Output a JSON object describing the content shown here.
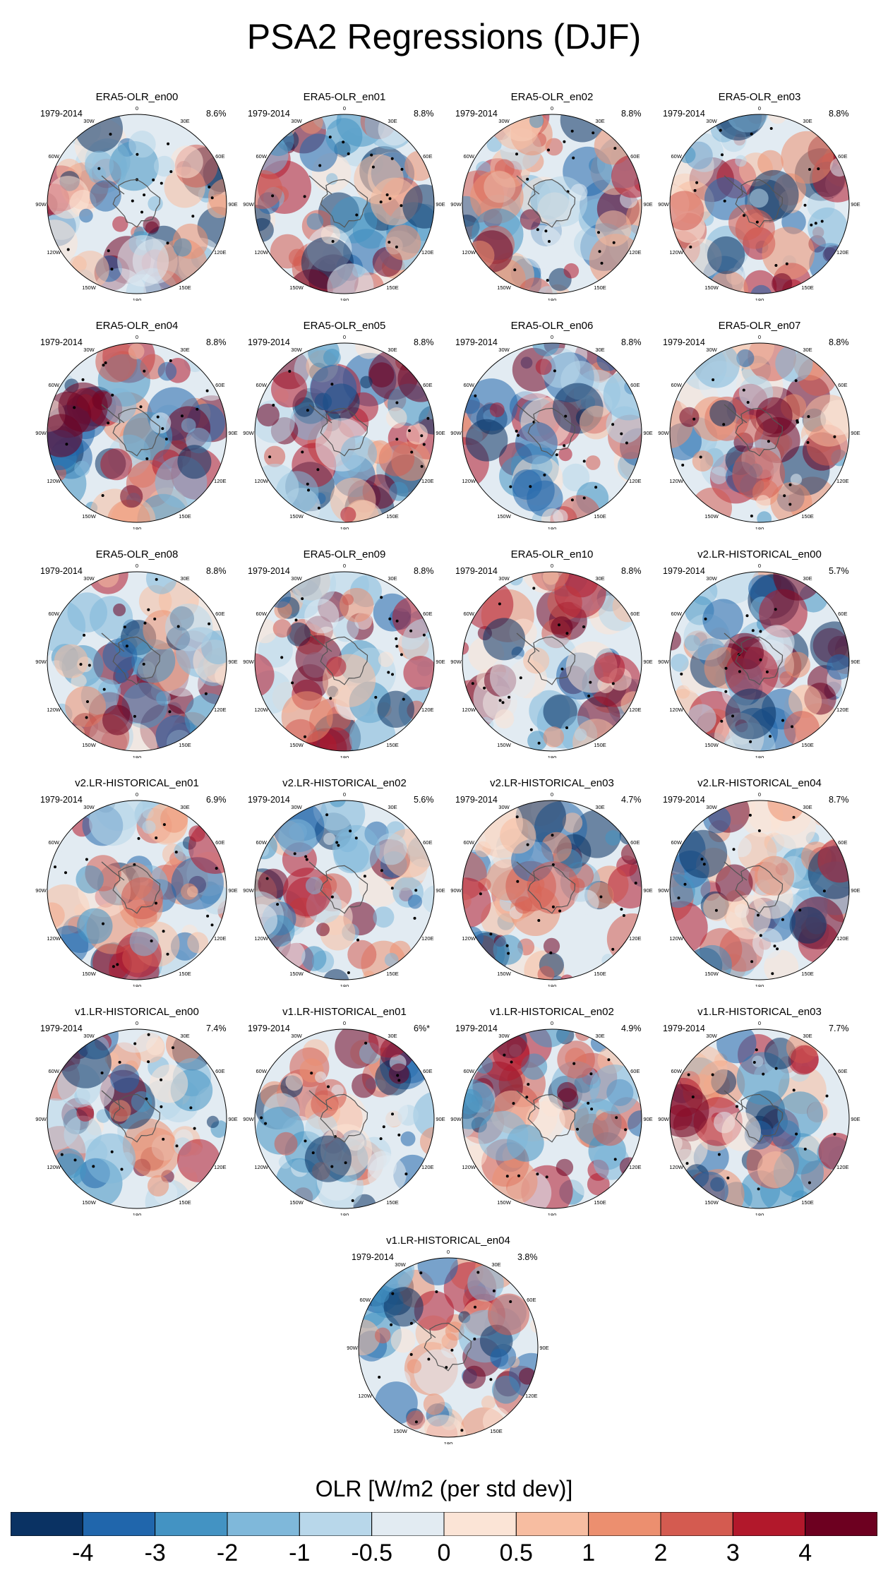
{
  "figure": {
    "title": "PSA2 Regressions (DJF)",
    "period": "1979-2014",
    "lon_labels": [
      "0",
      "30E",
      "60E",
      "90E",
      "120E",
      "150E",
      "180",
      "150W",
      "120W",
      "90W",
      "60W",
      "30W"
    ]
  },
  "chart_data": {
    "type": "polar-stereographic-maps",
    "title": "PSA2 Regressions (DJF)",
    "variable": "OLR",
    "units": "W/m2 (per std dev)",
    "season": "DJF",
    "period": "1979-2014",
    "panels": [
      {
        "name": "ERA5-OLR_en00",
        "pct": "8.6%"
      },
      {
        "name": "ERA5-OLR_en01",
        "pct": "8.8%"
      },
      {
        "name": "ERA5-OLR_en02",
        "pct": "8.8%"
      },
      {
        "name": "ERA5-OLR_en03",
        "pct": "8.8%"
      },
      {
        "name": "ERA5-OLR_en04",
        "pct": "8.8%"
      },
      {
        "name": "ERA5-OLR_en05",
        "pct": "8.8%"
      },
      {
        "name": "ERA5-OLR_en06",
        "pct": "8.8%"
      },
      {
        "name": "ERA5-OLR_en07",
        "pct": "8.8%"
      },
      {
        "name": "ERA5-OLR_en08",
        "pct": "8.8%"
      },
      {
        "name": "ERA5-OLR_en09",
        "pct": "8.8%"
      },
      {
        "name": "ERA5-OLR_en10",
        "pct": "8.8%"
      },
      {
        "name": "v2.LR-HISTORICAL_en00",
        "pct": "5.7%"
      },
      {
        "name": "v2.LR-HISTORICAL_en01",
        "pct": "6.9%"
      },
      {
        "name": "v2.LR-HISTORICAL_en02",
        "pct": "5.6%"
      },
      {
        "name": "v2.LR-HISTORICAL_en03",
        "pct": "4.7%"
      },
      {
        "name": "v2.LR-HISTORICAL_en04",
        "pct": "8.7%"
      },
      {
        "name": "v1.LR-HISTORICAL_en00",
        "pct": "7.4%"
      },
      {
        "name": "v1.LR-HISTORICAL_en01",
        "pct": "6%*"
      },
      {
        "name": "v1.LR-HISTORICAL_en02",
        "pct": "4.9%"
      },
      {
        "name": "v1.LR-HISTORICAL_en03",
        "pct": "7.7%"
      },
      {
        "name": "v1.LR-HISTORICAL_en04",
        "pct": "3.8%"
      }
    ],
    "colorbar": {
      "title": "OLR [W/m2 (per std dev)]",
      "labels": [
        "-4",
        "-3",
        "-2",
        "-1",
        "-0.5",
        "0",
        "0.5",
        "1",
        "2",
        "3",
        "4"
      ],
      "colors": [
        "#0a3263",
        "#2066ac",
        "#4393c3",
        "#7fb8da",
        "#b8d7ea",
        "#e2ebf2",
        "#fbe4d6",
        "#f7bda1",
        "#ec8f6f",
        "#d45b50",
        "#b2182b",
        "#6d0020"
      ]
    }
  }
}
